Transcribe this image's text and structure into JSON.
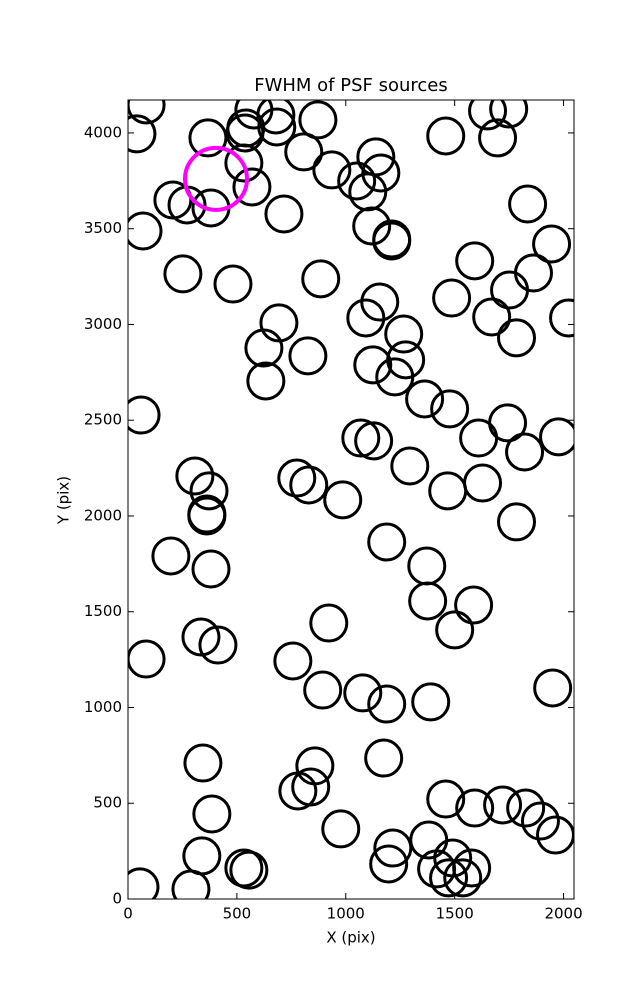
{
  "chart_data": {
    "type": "scatter",
    "title": "FWHM of PSF sources",
    "x_label": "X (pix)",
    "y_label": "Y (pix)",
    "xlim": [
      0,
      2048
    ],
    "ylim": [
      0,
      4172
    ],
    "xticks": [
      0,
      500,
      1000,
      1500,
      2000
    ],
    "yticks": [
      0,
      500,
      1000,
      1500,
      2000,
      2500,
      3000,
      3500,
      4000
    ],
    "series": [
      {
        "color": "#000000",
        "x": [
          83,
          41,
          367,
          541,
          578,
          679,
          683,
          537,
          872,
          807,
          936,
          1050,
          1138,
          1161,
          1101,
          1459,
          1651,
          1748,
          1697,
          1835,
          532,
          569,
          206,
          271,
          381,
          716,
          69,
          1119,
          1211,
          1211,
          252,
          482,
          885,
          1592,
          1752,
          1862,
          1945,
          2023,
          1486,
          1156,
          1092,
          1266,
          1275,
          1124,
          1225,
          1670,
          1784,
          693,
          624,
          826,
          633,
          60,
          1069,
          1128,
          1362,
          1477,
          1610,
          1743,
          1821,
          1977,
          1294,
          1468,
          1628,
          1784,
          775,
          830,
          986,
          307,
          372,
          362,
          362,
          1188,
          1372,
          197,
          381,
          1376,
          1587,
          1500,
          922,
          335,
          413,
          83,
          757,
          894,
          1078,
          1188,
          1390,
          1950,
          344,
          1174,
          858,
          839,
          780,
          385,
          1459,
          1592,
          1720,
          1826,
          1894,
          1963,
          977,
          339,
          532,
          555,
          1216,
          1197,
          1381,
          1417,
          1491,
          1472,
          1578,
          1537,
          55,
          289
        ],
        "values": [
          4146,
          3995,
          3974,
          4026,
          4120,
          4094,
          4031,
          4000,
          4068,
          3901,
          3807,
          3749,
          3875,
          3791,
          3692,
          3984,
          4115,
          4125,
          3974,
          3629,
          3843,
          3718,
          3650,
          3624,
          3608,
          3577,
          3488,
          3514,
          3446,
          3436,
          3264,
          3211,
          3238,
          3332,
          3180,
          3269,
          3420,
          3034,
          3138,
          3117,
          3034,
          2950,
          2815,
          2789,
          2726,
          3039,
          2930,
          3008,
          2877,
          2836,
          2705,
          2527,
          2407,
          2392,
          2611,
          2559,
          2407,
          2486,
          2334,
          2413,
          2261,
          2131,
          2172,
          1969,
          2198,
          2162,
          2084,
          2209,
          2131,
          2010,
          2000,
          1864,
          1739,
          1791,
          1723,
          1556,
          1535,
          1405,
          1441,
          1368,
          1326,
          1253,
          1243,
          1091,
          1076,
          1018,
          1029,
          1102,
          710,
          736,
          695,
          585,
          564,
          444,
          522,
          475,
          491,
          475,
          407,
          334,
          366,
          225,
          162,
          151,
          266,
          183,
          308,
          157,
          214,
          110,
          162,
          110,
          63,
          52
        ]
      },
      {
        "color": "#ff00ff",
        "x": [
          404
        ],
        "values": [
          3760
        ]
      }
    ]
  }
}
